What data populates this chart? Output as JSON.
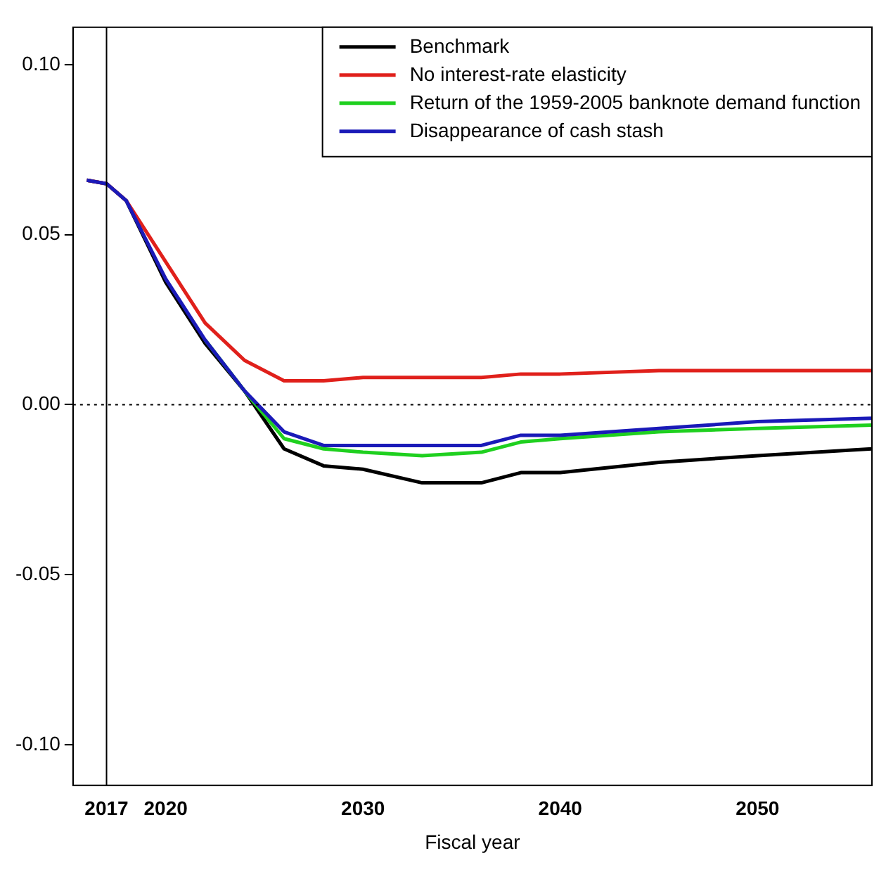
{
  "chart_data": {
    "type": "line",
    "xlabel": "Fiscal year",
    "xlim": [
      2015.3,
      2055.8
    ],
    "xticks": [
      2017,
      2020,
      2030,
      2040,
      2050
    ],
    "ylim": [
      -0.112,
      0.111
    ],
    "yticks": [
      {
        "value": -0.1,
        "label": "-0.10"
      },
      {
        "value": -0.05,
        "label": "-0.05"
      },
      {
        "value": 0,
        "label": "0.00"
      },
      {
        "value": 0.05,
        "label": "0.05"
      },
      {
        "value": 0.1,
        "label": "0.10"
      }
    ],
    "x": [
      2016,
      2017,
      2018,
      2020,
      2022,
      2024,
      2026,
      2028,
      2030,
      2033,
      2036,
      2038,
      2040,
      2045,
      2050,
      2055.8
    ],
    "series": [
      {
        "name": "Benchmark",
        "color": "#000000",
        "values": [
          0.066,
          0.065,
          0.06,
          0.036,
          0.018,
          0.004,
          -0.013,
          -0.018,
          -0.019,
          -0.023,
          -0.023,
          -0.02,
          -0.02,
          -0.017,
          -0.015,
          -0.013
        ]
      },
      {
        "name": "No interest-rate elasticity",
        "color": "#e0201b",
        "values": [
          0.066,
          0.065,
          0.06,
          0.042,
          0.024,
          0.013,
          0.007,
          0.007,
          0.008,
          0.008,
          0.008,
          0.009,
          0.009,
          0.01,
          0.01,
          0.01
        ]
      },
      {
        "name": "Return of the 1959-2005 banknote demand function",
        "color": "#1fd01f",
        "values": [
          null,
          null,
          null,
          null,
          0.019,
          0.004,
          -0.01,
          -0.013,
          -0.014,
          -0.015,
          -0.014,
          -0.011,
          -0.01,
          -0.008,
          -0.007,
          -0.006
        ]
      },
      {
        "name": "Disappearance of cash stash",
        "color": "#1a1ab8",
        "values": [
          0.066,
          0.065,
          0.06,
          0.037,
          0.019,
          0.004,
          -0.008,
          -0.012,
          -0.012,
          -0.012,
          -0.012,
          -0.009,
          -0.009,
          -0.007,
          -0.005,
          -0.004
        ]
      }
    ],
    "ref_lines": [
      {
        "axis": "x",
        "value": 2017,
        "color": "#000000",
        "line_style": "solid"
      },
      {
        "axis": "y",
        "value": 0,
        "color": "#000000",
        "line_style": "dotted"
      }
    ],
    "legend": "top right",
    "grid": false,
    "marker": "none",
    "line_style": "solid"
  }
}
